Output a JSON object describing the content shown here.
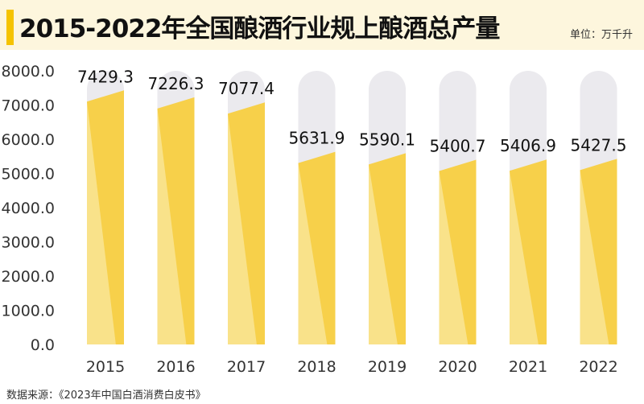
{
  "header": {
    "title": "2015-2022年全国酿酒行业规上酿酒总产量",
    "unit": "单位：万千升"
  },
  "footer": {
    "source": "数据来源：《2023年中国白酒消费白皮书》"
  },
  "colors": {
    "bar_fill": "#f7d04a",
    "bar_fill_light": "#fae8a0",
    "track": "#ebeaee",
    "header_bg": "#fdf6dd",
    "accent": "#f5c300"
  },
  "chart_data": {
    "type": "bar",
    "categories": [
      "2015",
      "2016",
      "2017",
      "2018",
      "2019",
      "2020",
      "2021",
      "2022"
    ],
    "values": [
      7429.3,
      7226.3,
      7077.4,
      5631.9,
      5590.1,
      5400.7,
      5406.9,
      5427.5
    ],
    "value_labels": [
      "7429.3",
      "7226.3",
      "7077.4",
      "5631.9",
      "5590.1",
      "5400.7",
      "5406.9",
      "5427.5"
    ],
    "y_ticks": [
      "0.0",
      "1000.0",
      "2000.0",
      "3000.0",
      "4000.0",
      "5000.0",
      "6000.0",
      "7000.0",
      "8000.0"
    ],
    "ylim": [
      0,
      8000
    ],
    "grid": false,
    "legend": "none"
  }
}
